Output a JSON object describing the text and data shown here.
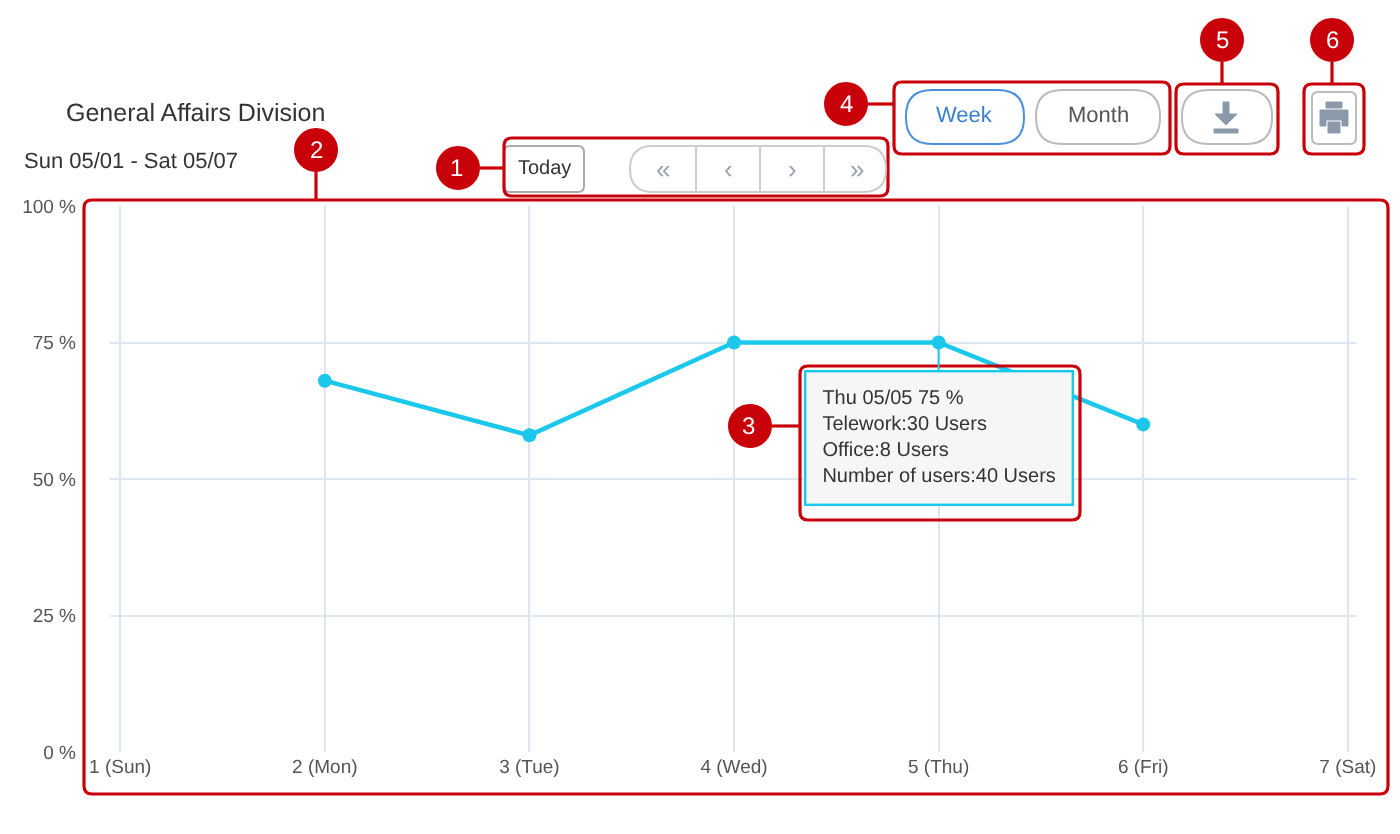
{
  "chart_data": {
    "type": "line",
    "title": "General Affairs Division",
    "subtitle": "Sun 05/01 - Sat 05/07",
    "categories": [
      "1 (Sun)",
      "2 (Mon)",
      "3 (Tue)",
      "4 (Wed)",
      "5 (Thu)",
      "6 (Fri)",
      "7 (Sat)"
    ],
    "series": [
      {
        "color": "#1cc7ec",
        "values": [
          null,
          68,
          58,
          75,
          75,
          60,
          null
        ]
      }
    ],
    "ylim": [
      0,
      100
    ],
    "yticks": [
      {
        "value": 0,
        "label": "0 %"
      },
      {
        "value": 25,
        "label": "25 %"
      },
      {
        "value": 50,
        "label": "50 %"
      },
      {
        "value": 75,
        "label": "75 %"
      },
      {
        "value": 100,
        "label": "100 %"
      }
    ],
    "grid": true,
    "marker": "circle",
    "line_style": "solid",
    "annotations": [
      "Today",
      "«",
      "‹",
      "›",
      "»",
      "Week",
      "Month",
      "1",
      "2",
      "3",
      "4",
      "5",
      "6",
      {
        "text": "Thu 05/05 75 %\nTelework:30 Users\nOffice:8 Users\nNumber of users:40 Users",
        "x": "5 (Thu)",
        "y": 75
      }
    ]
  }
}
